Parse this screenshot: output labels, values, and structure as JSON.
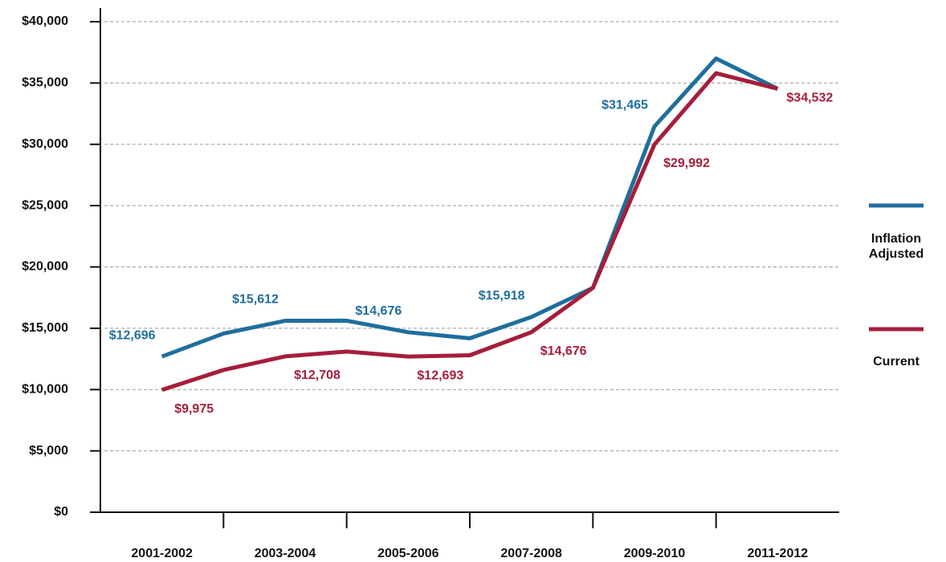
{
  "chart_data": {
    "type": "line",
    "categories": [
      "2001-2002",
      null,
      "2003-2004",
      null,
      "2005-2006",
      null,
      "2007-2008",
      null,
      "2009-2010",
      null,
      "2011-2012"
    ],
    "series": [
      {
        "name": "Inflation Adjusted",
        "color": "#1f6e9c",
        "values": [
          12696,
          14572,
          15612,
          15619,
          14676,
          14179,
          15918,
          18300,
          31465,
          37000,
          34532
        ],
        "value_labels": [
          "$12,696",
          null,
          "$15,612",
          null,
          "$14,676",
          null,
          "$15,918",
          null,
          "$31,465",
          null,
          null
        ]
      },
      {
        "name": "Current",
        "color": "#a51e3a",
        "values": [
          9975,
          11600,
          12708,
          13100,
          12693,
          12800,
          14676,
          18300,
          29992,
          35800,
          34532
        ],
        "value_labels": [
          "$9,975",
          null,
          "$12,708",
          null,
          "$12,693",
          null,
          "$14,676",
          null,
          "$29,992",
          null,
          "$34,532"
        ]
      }
    ],
    "ylim": [
      0,
      40000
    ],
    "yticks": [
      {
        "value": 0,
        "label": "$0"
      },
      {
        "value": 5000,
        "label": "$5,000"
      },
      {
        "value": 10000,
        "label": "$10,000"
      },
      {
        "value": 15000,
        "label": "$15,000"
      },
      {
        "value": 20000,
        "label": "$20,000"
      },
      {
        "value": 25000,
        "label": "$25,000"
      },
      {
        "value": 30000,
        "label": "$30,000"
      },
      {
        "value": 35000,
        "label": "$35,000"
      },
      {
        "value": 40000,
        "label": "$40,000"
      }
    ],
    "grid": true
  }
}
